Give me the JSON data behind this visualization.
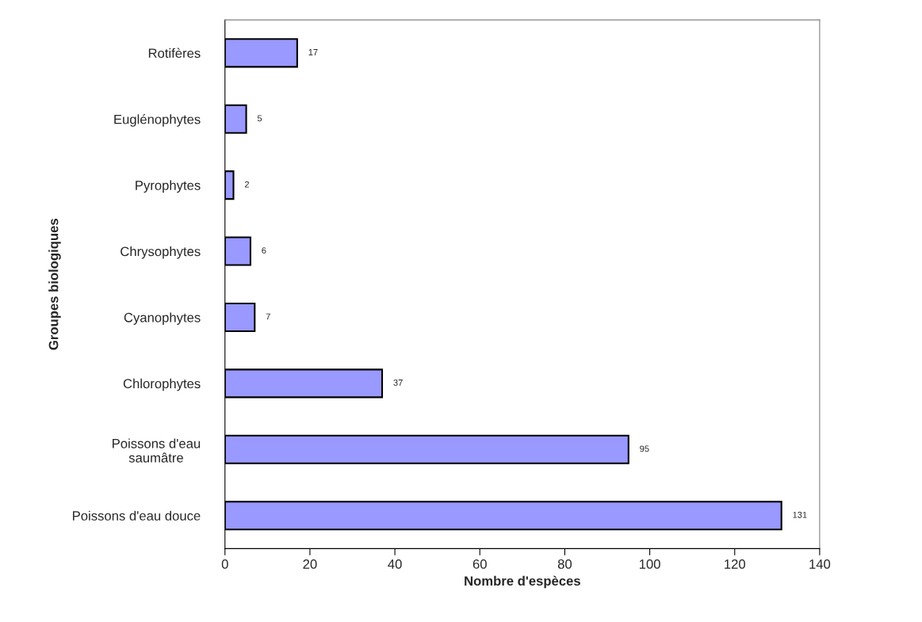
{
  "chart_data": {
    "type": "bar",
    "orientation": "horizontal",
    "xlabel": "Nombre d'espèces",
    "ylabel": "Groupes biologiques",
    "categories": [
      "Rotifères",
      "Euglénophytes",
      "Pyrophytes",
      "Chrysophytes",
      "Cyanophytes",
      "Chlorophytes",
      "Poissons d'eau\nsaumâtre",
      "Poissons d'eau douce"
    ],
    "values": [
      17,
      5,
      2,
      6,
      7,
      37,
      95,
      131
    ],
    "color": "#9999ff",
    "xlim": [
      0,
      140
    ],
    "xticks": [
      0,
      20,
      40,
      60,
      80,
      100,
      120,
      140
    ],
    "data_labels": true,
    "grid": false
  }
}
